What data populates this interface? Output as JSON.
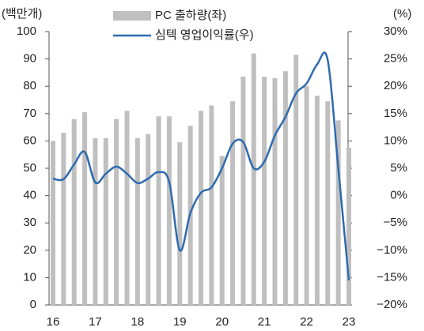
{
  "chart_data": {
    "type": "combo",
    "y_label": "(백만개)",
    "y2_label": "(%)",
    "categories": [
      "16",
      null,
      null,
      null,
      "17",
      null,
      null,
      null,
      "18",
      null,
      null,
      null,
      "19",
      null,
      null,
      null,
      "20",
      null,
      null,
      null,
      "21",
      null,
      null,
      null,
      "22",
      null,
      null,
      null,
      "23"
    ],
    "series": [
      {
        "name": "PC 출하량(좌)",
        "type": "bar",
        "color": "#bfbfbf",
        "values": [
          60,
          63,
          68,
          70.5,
          61,
          61,
          68,
          71,
          61,
          62.5,
          69,
          69,
          59.5,
          65.5,
          71,
          73,
          54.5,
          74.5,
          83.5,
          92,
          83.5,
          83,
          85.5,
          91.5,
          80,
          76.5,
          74.5,
          67.5,
          57.5
        ]
      },
      {
        "name": "심텍 영업이익률(우)",
        "type": "line",
        "axis": "y2",
        "color": "#2e6bb0",
        "values": [
          3.1,
          3.0,
          5.7,
          8.0,
          2.4,
          4.0,
          5.3,
          4.0,
          2.3,
          3.1,
          4.3,
          2.5,
          -10.0,
          -3.2,
          0.5,
          1.5,
          5.0,
          9.5,
          9.8,
          5.0,
          6.2,
          11.0,
          14.4,
          18.7,
          20.5,
          24.0,
          24.8,
          5.0,
          -15.5
        ]
      }
    ],
    "ylim": [
      0,
      100
    ],
    "yticks": [
      0,
      10,
      20,
      30,
      40,
      50,
      60,
      70,
      80,
      90,
      100
    ],
    "y2lim": [
      -20,
      30
    ],
    "y2ticks": [
      {
        "value": -20,
        "label": "−20%"
      },
      {
        "value": -15,
        "label": "−15%"
      },
      {
        "value": -10,
        "label": "−10%"
      },
      {
        "value": -5,
        "label": "−5%"
      },
      {
        "value": 0,
        "label": "0%"
      },
      {
        "value": 5,
        "label": "5%"
      },
      {
        "value": 10,
        "label": "10%"
      },
      {
        "value": 15,
        "label": "15%"
      },
      {
        "value": 20,
        "label": "20%"
      },
      {
        "value": 25,
        "label": "25%"
      },
      {
        "value": 30,
        "label": "30%"
      }
    ]
  }
}
